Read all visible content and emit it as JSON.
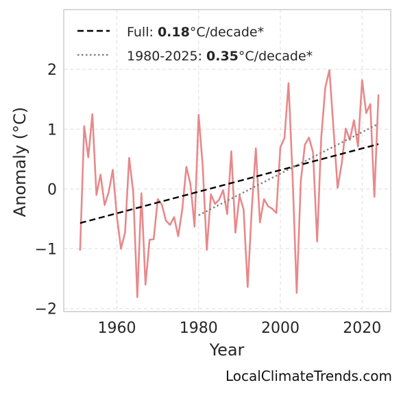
{
  "chart_data": {
    "type": "line",
    "xlabel": "Year",
    "ylabel": "Anomaly (°C)",
    "xlim": [
      1947,
      2027
    ],
    "ylim": [
      -2.05,
      3.0
    ],
    "x_ticks": [
      1960,
      1980,
      2000,
      2020
    ],
    "y_ticks": [
      -2,
      -1,
      0,
      1,
      2
    ],
    "y_tick_labels": [
      "−2",
      "−1",
      "0",
      "1",
      "2"
    ],
    "grid": true,
    "legend_position": "top-left",
    "series": [
      {
        "color": "#e8888a",
        "style": "solid",
        "x": [
          1951,
          1952,
          1953,
          1954,
          1955,
          1956,
          1957,
          1958,
          1959,
          1960,
          1961,
          1962,
          1963,
          1964,
          1965,
          1966,
          1967,
          1968,
          1969,
          1970,
          1971,
          1972,
          1973,
          1974,
          1975,
          1976,
          1977,
          1978,
          1979,
          1980,
          1981,
          1982,
          1983,
          1984,
          1985,
          1986,
          1987,
          1988,
          1989,
          1990,
          1991,
          1992,
          1993,
          1994,
          1995,
          1996,
          1997,
          1998,
          1999,
          2000,
          2001,
          2002,
          2003,
          2004,
          2005,
          2006,
          2007,
          2008,
          2009,
          2010,
          2011,
          2012,
          2013,
          2014,
          2015,
          2016,
          2017,
          2018,
          2019,
          2020,
          2021,
          2022,
          2023,
          2024
        ],
        "y": [
          -1.03,
          1.05,
          0.53,
          1.25,
          -0.1,
          0.24,
          -0.27,
          -0.05,
          0.32,
          -0.46,
          -1.0,
          -0.73,
          0.52,
          -0.05,
          -1.81,
          -0.07,
          -1.6,
          -0.85,
          -0.84,
          -0.17,
          -0.26,
          -0.53,
          -0.6,
          -0.47,
          -0.79,
          -0.34,
          0.37,
          0.08,
          -0.63,
          1.24,
          0.38,
          -1.02,
          -0.09,
          -0.25,
          -0.18,
          -0.02,
          -0.42,
          0.63,
          -0.73,
          -0.11,
          -0.34,
          -1.64,
          -0.34,
          0.68,
          -0.56,
          -0.17,
          -0.29,
          -0.33,
          -0.4,
          0.7,
          0.85,
          1.77,
          0.19,
          -1.74,
          0.13,
          0.74,
          0.86,
          0.61,
          -0.88,
          0.86,
          1.7,
          1.99,
          1.01,
          0.02,
          0.42,
          1.01,
          0.82,
          1.15,
          0.71,
          1.82,
          1.27,
          1.42,
          -0.13,
          1.58
        ]
      },
      {
        "name": "Full: 0.18°C/decade*",
        "color": "#000000",
        "style": "dashed",
        "x": [
          1951,
          2024
        ],
        "y": [
          -0.57,
          0.75
        ]
      },
      {
        "name": "1980-2025: 0.35°C/decade*",
        "color": "#808080",
        "style": "dotted",
        "x": [
          1980,
          2024
        ],
        "y": [
          -0.44,
          1.09
        ]
      }
    ],
    "legend": [
      {
        "prefix": "Full: ",
        "bold": "0.18",
        "suffix": "°C/decade*",
        "color": "#000000",
        "style": "dashed"
      },
      {
        "prefix": "1980-2025: ",
        "bold": "0.35",
        "suffix": "°C/decade*",
        "color": "#808080",
        "style": "dotted"
      }
    ]
  },
  "footer": {
    "watermark": "LocalClimateTrends.com"
  }
}
